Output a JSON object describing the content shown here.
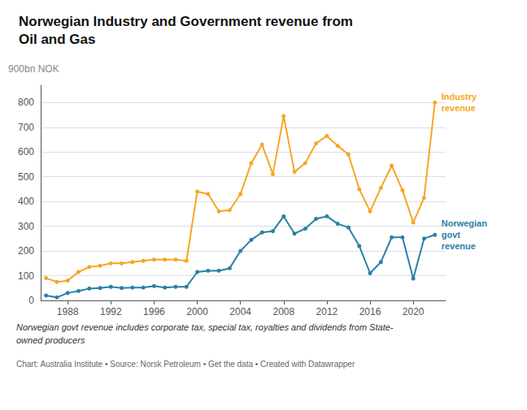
{
  "chart_data": {
    "type": "line",
    "title": "Norwegian Industry and Government revenue from\nOil and Gas",
    "ylabel": "900bn NOK",
    "x": [
      1986,
      1987,
      1988,
      1989,
      1990,
      1991,
      1992,
      1993,
      1994,
      1995,
      1996,
      1997,
      1998,
      1999,
      2000,
      2001,
      2002,
      2003,
      2004,
      2005,
      2006,
      2007,
      2008,
      2009,
      2010,
      2011,
      2012,
      2013,
      2014,
      2015,
      2016,
      2017,
      2018,
      2019,
      2020,
      2021,
      2022
    ],
    "series": [
      {
        "name": "Industry\nrevenue",
        "color": "#f5a623",
        "marker": "circle",
        "values": [
          90,
          75,
          80,
          115,
          135,
          140,
          150,
          150,
          155,
          160,
          165,
          165,
          165,
          160,
          440,
          430,
          360,
          365,
          430,
          555,
          630,
          510,
          745,
          520,
          555,
          635,
          665,
          625,
          590,
          450,
          360,
          455,
          545,
          445,
          315,
          415,
          800
        ]
      },
      {
        "name": "Norwegian\ngovt\nrevenue",
        "color": "#2a7fa5",
        "marker": "circle",
        "values": [
          20,
          12,
          30,
          38,
          48,
          50,
          55,
          50,
          52,
          52,
          58,
          52,
          55,
          55,
          115,
          120,
          120,
          130,
          200,
          245,
          275,
          280,
          340,
          270,
          290,
          330,
          340,
          310,
          295,
          220,
          110,
          155,
          255,
          255,
          88,
          250,
          265
        ]
      }
    ],
    "xlim": [
      1985.5,
      2023
    ],
    "xticks": [
      1988,
      1992,
      1996,
      2000,
      2004,
      2008,
      2012,
      2016,
      2020
    ],
    "ylim": [
      0,
      870
    ],
    "yticks": [
      0,
      100,
      200,
      300,
      400,
      500,
      600,
      700,
      800
    ],
    "grid": "y",
    "annotations": [
      "Norwegian govt revenue includes corporate tax, special tax, royalties and dividends from State-",
      "owned producers",
      "Chart: Australia Institute • Source: Norsk Petroleum • Get the data • Created with Datawrapper"
    ]
  }
}
